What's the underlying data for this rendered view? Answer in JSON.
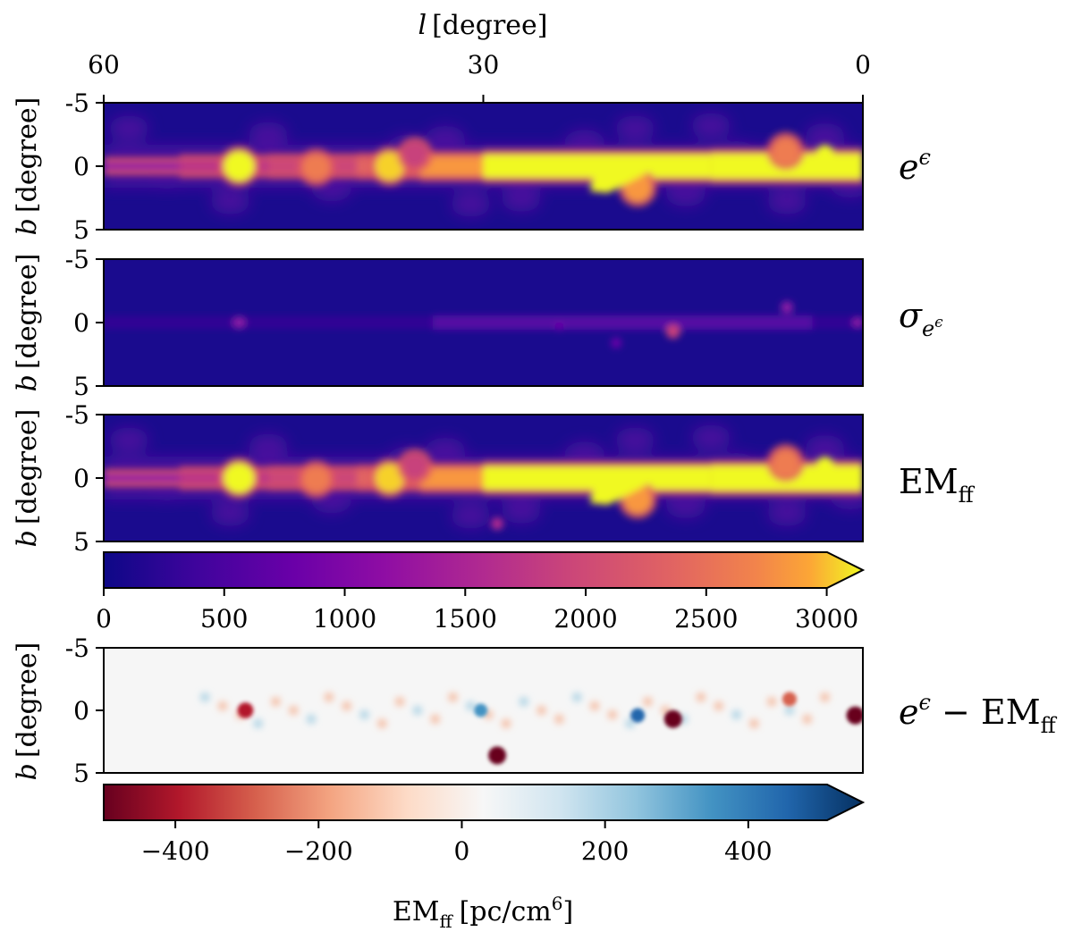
{
  "chart_data": {
    "type": "heatmap",
    "x_axis": {
      "label_var": "l",
      "label_unit": "[degree]",
      "ticks": [
        "60",
        "30",
        "0"
      ],
      "tick_values": [
        60,
        30,
        0
      ],
      "range": [
        60,
        0
      ]
    },
    "y_axis": {
      "label_var": "b",
      "label_unit": "[degree]",
      "ticks": [
        "-5",
        "0",
        "5"
      ],
      "tick_values": [
        -5,
        0,
        5
      ],
      "range": [
        -5,
        5
      ]
    },
    "panels": [
      {
        "name": "emission-map-panel",
        "label_main": "e",
        "label_sup": "ϵ",
        "colormap": "plasma",
        "vmin": 0,
        "vmax": 3000
      },
      {
        "name": "uncertainty-map-panel",
        "label_main": "σ",
        "label_sub": "e",
        "label_subsup": "ϵ",
        "colormap": "plasma",
        "vmin": 0,
        "vmax": 3000
      },
      {
        "name": "emff-map-panel",
        "label_main": "EM",
        "label_sub": "ff",
        "colormap": "plasma",
        "vmin": 0,
        "vmax": 3000
      },
      {
        "name": "difference-map-panel",
        "label_main": "e",
        "label_sup": "ϵ",
        "label_mid": " − EM",
        "label_sub": "ff",
        "colormap": "RdBu",
        "vmin": -500,
        "vmax": 500
      }
    ],
    "colorbars": [
      {
        "name": "plasma-colorbar",
        "ticks": [
          "0",
          "500",
          "1000",
          "1500",
          "2000",
          "2500",
          "3000"
        ],
        "tick_values": [
          0,
          500,
          1000,
          1500,
          2000,
          2500,
          3000
        ],
        "range": [
          0,
          3150
        ],
        "extend": "max"
      },
      {
        "name": "rdbu-colorbar",
        "ticks": [
          "−400",
          "−200",
          "0",
          "200",
          "400"
        ],
        "tick_values": [
          -400,
          -200,
          0,
          200,
          400
        ],
        "range": [
          -500,
          560
        ],
        "extend": "max",
        "label_main": "EM",
        "label_sub": "ff",
        "label_unit": "[pc/cm",
        "label_unit_sup": "6",
        "label_unit_end": "]"
      }
    ],
    "features": {
      "emission_sources": [
        {
          "l": 49.3,
          "b": 0.0,
          "value": 3000
        },
        {
          "l": 43.2,
          "b": 0.1,
          "value": 2200
        },
        {
          "l": 37.4,
          "b": 0.0,
          "value": 2600
        },
        {
          "l": 35.4,
          "b": -0.9,
          "value": 1500
        },
        {
          "l": 17.8,
          "b": 1.7,
          "value": 2400
        },
        {
          "l": 6.1,
          "b": -1.2,
          "value": 2200
        }
      ],
      "difference_sources": [
        {
          "l": 48.8,
          "b": 0.0,
          "value": -380
        },
        {
          "l": 28.9,
          "b": 3.6,
          "value": -500
        },
        {
          "l": 15.0,
          "b": 0.7,
          "value": -500
        },
        {
          "l": 5.8,
          "b": -0.9,
          "value": -300
        },
        {
          "l": 0.6,
          "b": 0.4,
          "value": -500
        },
        {
          "l": 30.2,
          "b": 0.0,
          "value": 250
        },
        {
          "l": 17.8,
          "b": 0.4,
          "value": 300
        }
      ]
    }
  }
}
